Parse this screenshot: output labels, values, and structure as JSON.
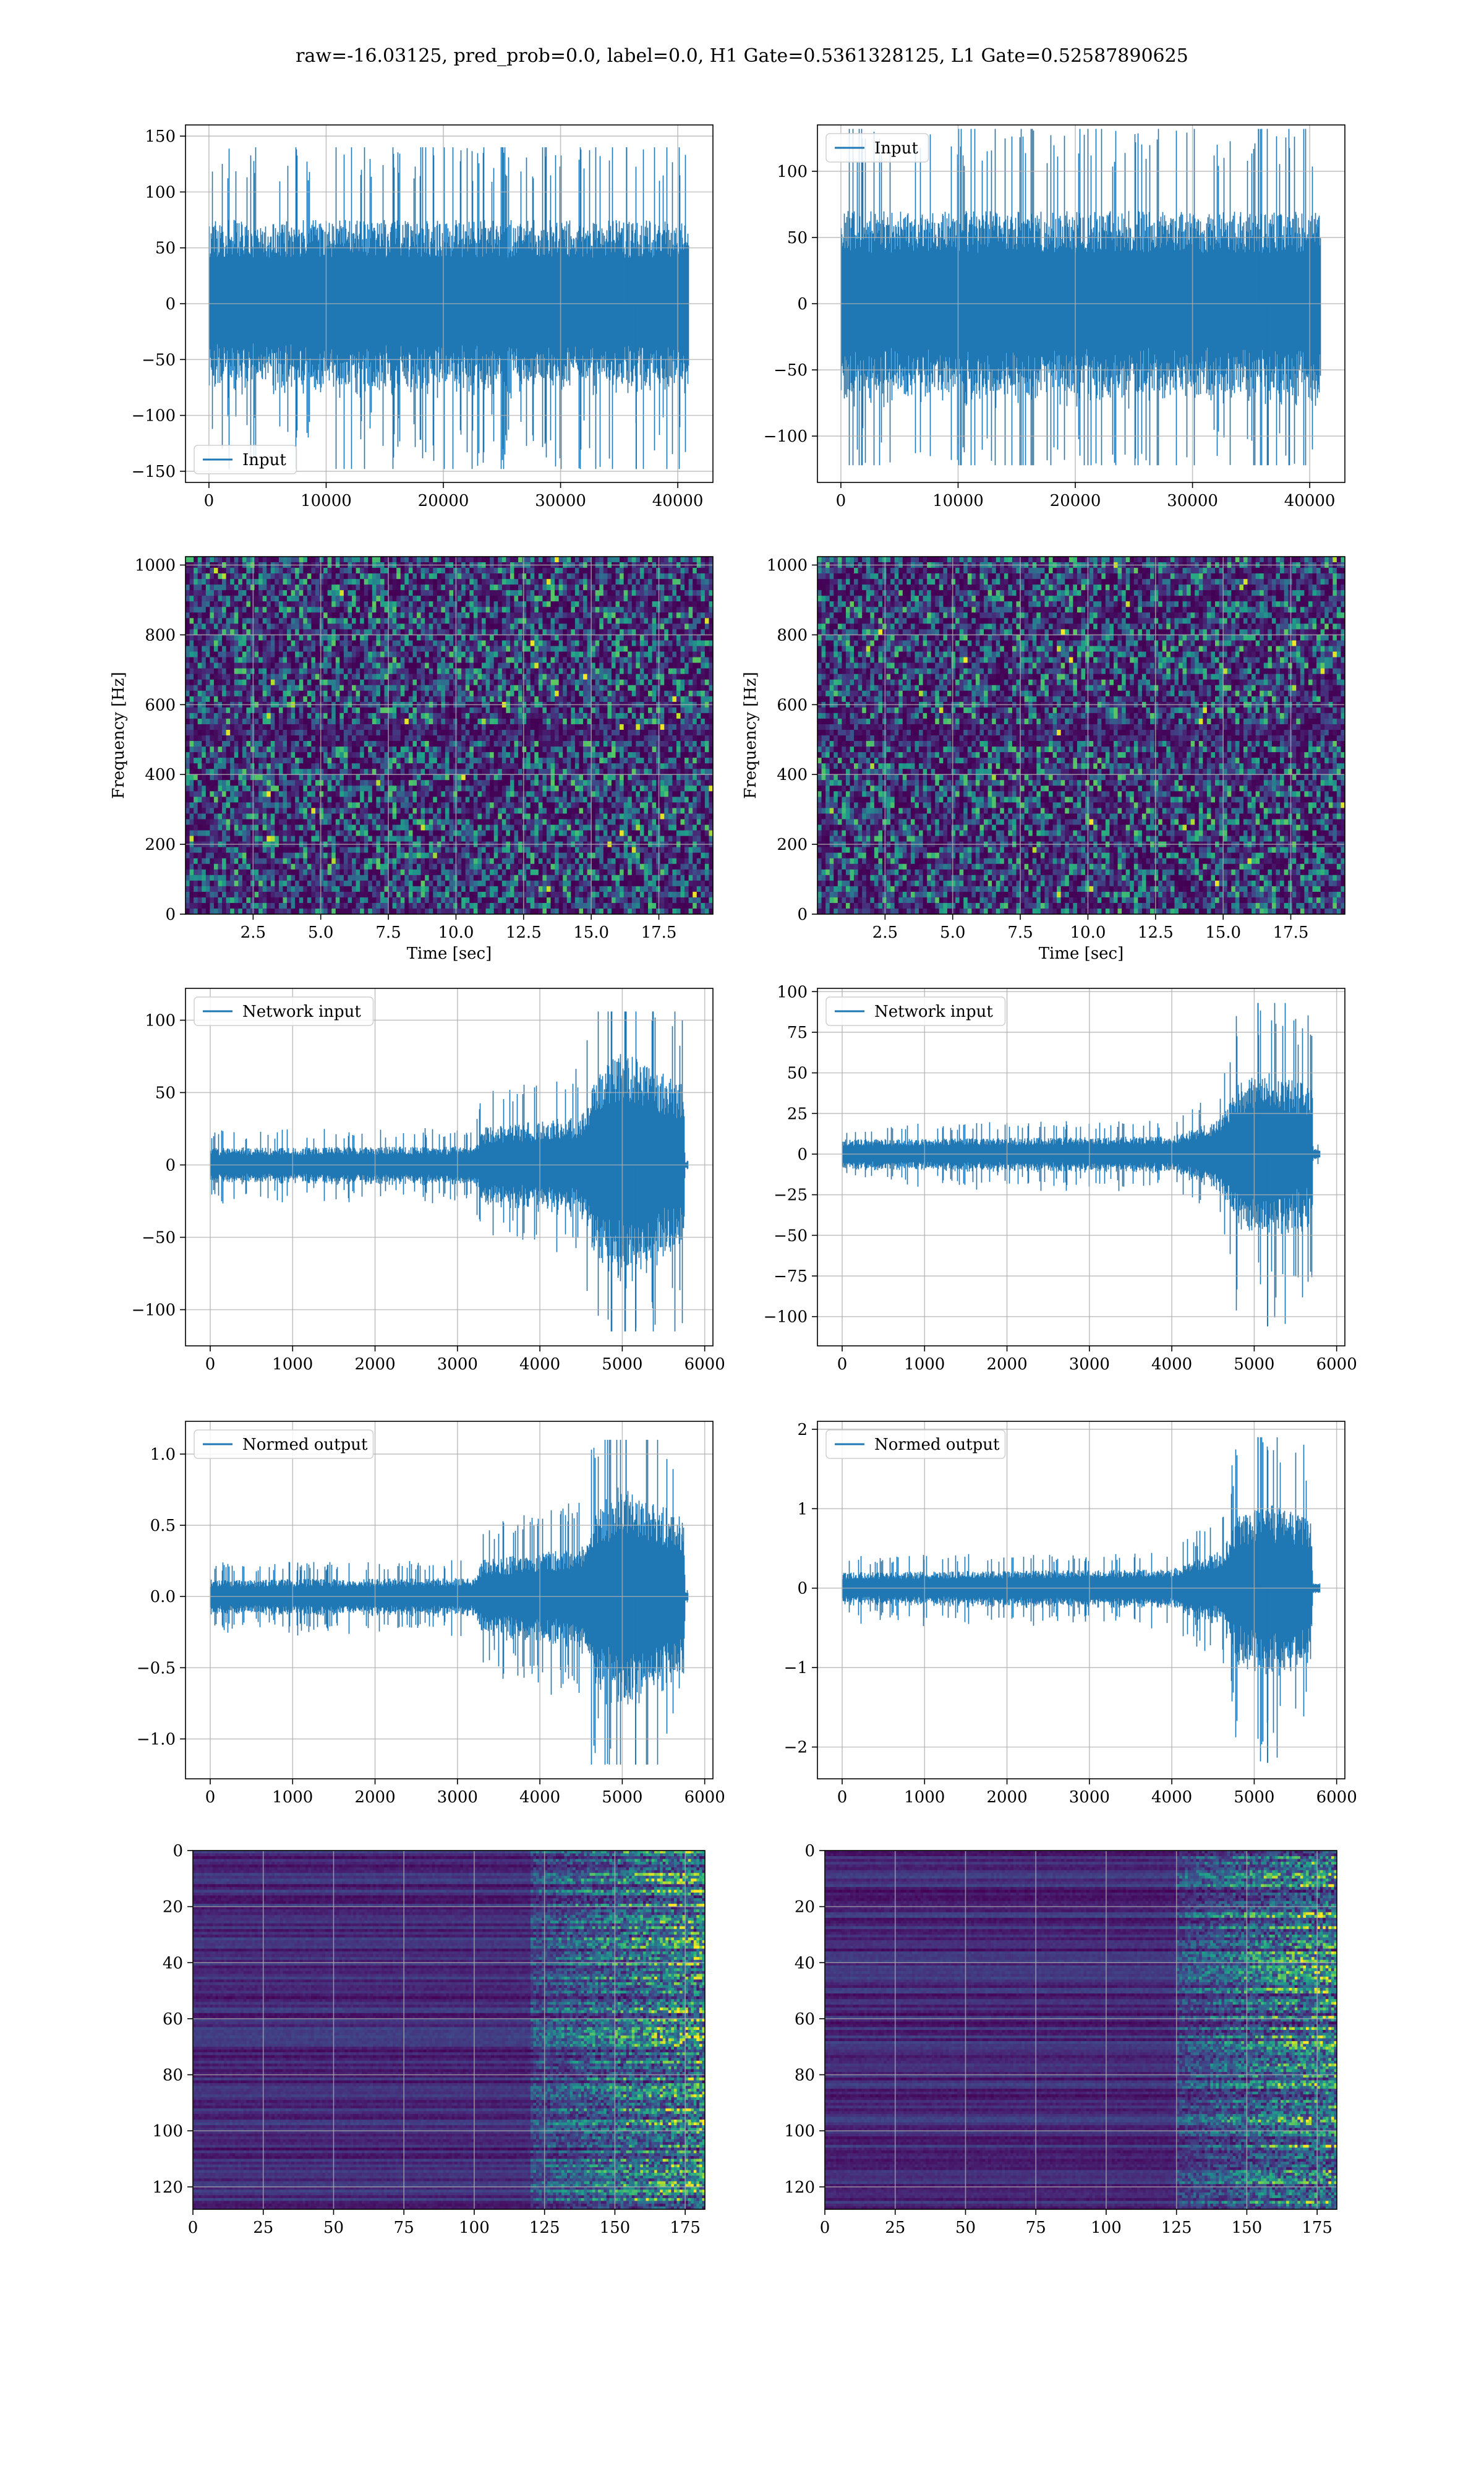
{
  "figure": {
    "suptitle": "raw=-16.03125, pred_prob=0.0, label=0.0, H1 Gate=0.5361328125, L1 Gate=0.52587890625"
  },
  "colors": {
    "series": "#1f77b4",
    "grid": "#b0b0b0",
    "viridis_dark": "#440154",
    "viridis_mid": "#21918c",
    "viridis_bright": "#fde725"
  },
  "chart_data": [
    {
      "id": "input-h1",
      "type": "line",
      "title": "",
      "xlabel": "",
      "ylabel": "",
      "legend": {
        "label": "Input",
        "loc": "lower-left"
      },
      "xlim": [
        -2000,
        43000
      ],
      "ylim": [
        -160,
        160
      ],
      "xticks": [
        0,
        10000,
        20000,
        30000,
        40000
      ],
      "yticks": [
        -150,
        -100,
        -50,
        0,
        50,
        100,
        150
      ],
      "signal": {
        "n_samples": 40960,
        "envelope": [
          [
            0,
            75
          ],
          [
            41000,
            75
          ]
        ],
        "peak_min": -148,
        "peak_max": 140
      },
      "grid": true
    },
    {
      "id": "input-l1",
      "type": "line",
      "title": "",
      "xlabel": "",
      "ylabel": "",
      "legend": {
        "label": "Input",
        "loc": "upper-left"
      },
      "xlim": [
        -2000,
        43000
      ],
      "ylim": [
        -135,
        135
      ],
      "xticks": [
        0,
        10000,
        20000,
        30000,
        40000
      ],
      "yticks": [
        -100,
        -50,
        0,
        50,
        100
      ],
      "signal": {
        "n_samples": 40960,
        "envelope": [
          [
            0,
            70
          ],
          [
            41000,
            70
          ]
        ],
        "peak_min": -122,
        "peak_max": 132
      },
      "grid": true
    },
    {
      "id": "spec-h1",
      "type": "heatmap",
      "title": "",
      "xlabel": "Time [sec]",
      "ylabel": "Frequency [Hz]",
      "xlim": [
        0,
        19.5
      ],
      "ylim": [
        0,
        1024
      ],
      "xticks": [
        2.5,
        5.0,
        7.5,
        10.0,
        12.5,
        15.0,
        17.5
      ],
      "yticks": [
        0,
        200,
        400,
        600,
        800,
        1000
      ],
      "colormap": "viridis",
      "grid": true
    },
    {
      "id": "spec-l1",
      "type": "heatmap",
      "title": "",
      "xlabel": "Time [sec]",
      "ylabel": "Frequency [Hz]",
      "xlim": [
        0,
        19.5
      ],
      "ylim": [
        0,
        1024
      ],
      "xticks": [
        2.5,
        5.0,
        7.5,
        10.0,
        12.5,
        15.0,
        17.5
      ],
      "yticks": [
        0,
        200,
        400,
        600,
        800,
        1000
      ],
      "colormap": "viridis",
      "grid": true
    },
    {
      "id": "netin-h1",
      "type": "line",
      "title": "",
      "xlabel": "",
      "ylabel": "",
      "legend": {
        "label": "Network input",
        "loc": "upper-left"
      },
      "xlim": [
        -300,
        6100
      ],
      "ylim": [
        -125,
        122
      ],
      "xticks": [
        0,
        1000,
        2000,
        3000,
        4000,
        5000,
        6000
      ],
      "yticks": [
        -100,
        -50,
        0,
        50,
        100
      ],
      "signal": {
        "n_samples": 5800,
        "envelope": [
          [
            0,
            12
          ],
          [
            3200,
            13
          ],
          [
            3300,
            26
          ],
          [
            4500,
            34
          ],
          [
            4700,
            62
          ],
          [
            5000,
            80
          ],
          [
            5750,
            55
          ],
          [
            5760,
            3
          ],
          [
            5850,
            3
          ]
        ],
        "peak_min": -115,
        "peak_max": 106
      },
      "grid": true
    },
    {
      "id": "netin-l1",
      "type": "line",
      "title": "",
      "xlabel": "",
      "ylabel": "",
      "legend": {
        "label": "Network input",
        "loc": "upper-left"
      },
      "xlim": [
        -300,
        6100
      ],
      "ylim": [
        -118,
        102
      ],
      "xticks": [
        0,
        1000,
        2000,
        3000,
        4000,
        5000,
        6000
      ],
      "yticks": [
        -100,
        -75,
        -50,
        -25,
        0,
        25,
        50,
        75,
        100
      ],
      "signal": {
        "n_samples": 5800,
        "envelope": [
          [
            0,
            9
          ],
          [
            4000,
            11
          ],
          [
            4600,
            22
          ],
          [
            4800,
            45
          ],
          [
            5200,
            50
          ],
          [
            5700,
            42
          ],
          [
            5710,
            3
          ],
          [
            5850,
            3
          ]
        ],
        "peak_min": -106,
        "peak_max": 93
      },
      "grid": true
    },
    {
      "id": "normed-h1",
      "type": "line",
      "title": "",
      "xlabel": "",
      "ylabel": "",
      "legend": {
        "label": "Normed output",
        "loc": "upper-left"
      },
      "xlim": [
        -300,
        6100
      ],
      "ylim": [
        -1.28,
        1.23
      ],
      "xticks": [
        0,
        1000,
        2000,
        3000,
        4000,
        5000,
        6000
      ],
      "yticks": [
        -1.0,
        -0.5,
        0.0,
        0.5,
        1.0
      ],
      "signal": {
        "n_samples": 5800,
        "envelope": [
          [
            0,
            0.12
          ],
          [
            3200,
            0.13
          ],
          [
            3300,
            0.26
          ],
          [
            4500,
            0.34
          ],
          [
            4700,
            0.62
          ],
          [
            5000,
            0.8
          ],
          [
            5750,
            0.55
          ],
          [
            5760,
            0.03
          ],
          [
            5850,
            0.03
          ]
        ],
        "peak_min": -1.18,
        "peak_max": 1.1
      },
      "grid": true
    },
    {
      "id": "normed-l1",
      "type": "line",
      "title": "",
      "xlabel": "",
      "ylabel": "",
      "legend": {
        "label": "Normed output",
        "loc": "upper-left"
      },
      "xlim": [
        -300,
        6100
      ],
      "ylim": [
        -2.4,
        2.1
      ],
      "xticks": [
        0,
        1000,
        2000,
        3000,
        4000,
        5000,
        6000
      ],
      "yticks": [
        -2,
        -1,
        0,
        1,
        2
      ],
      "signal": {
        "n_samples": 5800,
        "envelope": [
          [
            0,
            0.2
          ],
          [
            4000,
            0.24
          ],
          [
            4600,
            0.48
          ],
          [
            4800,
            0.95
          ],
          [
            5200,
            1.05
          ],
          [
            5700,
            0.9
          ],
          [
            5710,
            0.06
          ],
          [
            5850,
            0.06
          ]
        ],
        "peak_min": -2.2,
        "peak_max": 1.9
      },
      "grid": true
    },
    {
      "id": "features-h1",
      "type": "heatmap",
      "title": "",
      "xlabel": "",
      "ylabel": "",
      "xlim": [
        0,
        182
      ],
      "ylim": [
        128,
        0
      ],
      "xticks": [
        0,
        25,
        50,
        75,
        100,
        125,
        150,
        175
      ],
      "yticks": [
        0,
        20,
        40,
        60,
        80,
        100,
        120
      ],
      "colormap": "viridis",
      "activity_onset_col": 120,
      "grid": true
    },
    {
      "id": "features-l1",
      "type": "heatmap",
      "title": "",
      "xlabel": "",
      "ylabel": "",
      "xlim": [
        0,
        182
      ],
      "ylim": [
        128,
        0
      ],
      "xticks": [
        0,
        25,
        50,
        75,
        100,
        125,
        150,
        175
      ],
      "yticks": [
        0,
        20,
        40,
        60,
        80,
        100,
        120
      ],
      "colormap": "viridis",
      "activity_onset_col": 125,
      "grid": true
    }
  ]
}
